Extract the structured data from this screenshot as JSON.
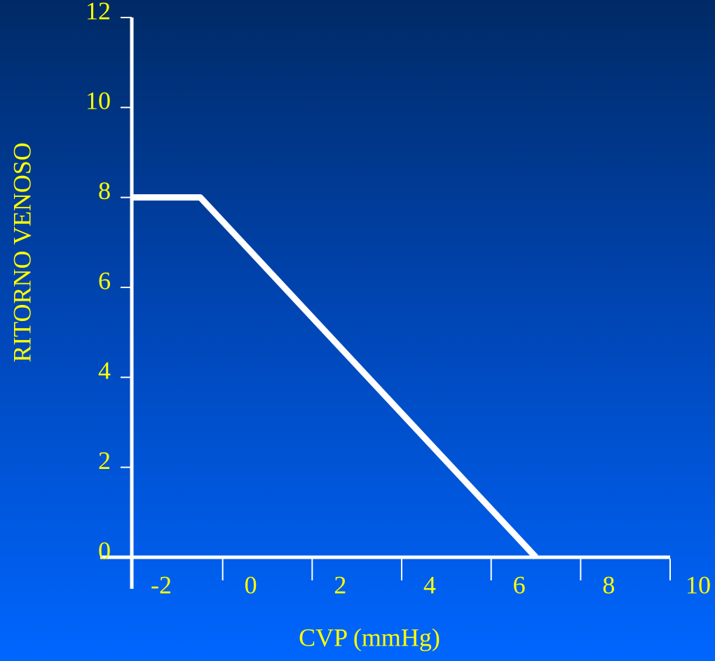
{
  "chart_data": {
    "type": "line",
    "xlabel": "CVP (mmHg)",
    "ylabel": "RITORNO VENOSO",
    "x": [
      -2,
      -0.5,
      7
    ],
    "series": [
      {
        "color": "#ffffff",
        "values": [
          8,
          8,
          0
        ]
      }
    ],
    "xlim": [
      -2,
      10
    ],
    "xticks": [
      -2,
      0,
      2,
      4,
      6,
      8,
      10
    ],
    "ylim": [
      0,
      12
    ],
    "yticks": [
      0,
      2,
      4,
      6,
      8,
      10,
      12
    ],
    "text_color": "#ffff00",
    "axis_color": "#ffffff"
  }
}
